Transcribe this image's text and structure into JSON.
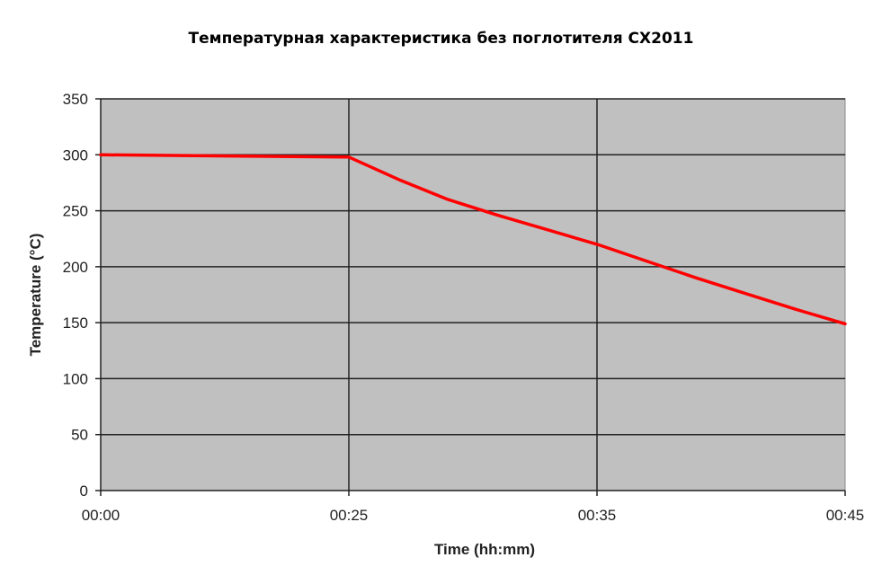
{
  "chart_data": {
    "type": "line",
    "title": "Температурная характеристика без поглотителя CX2011",
    "xlabel": "Time (hh:mm)",
    "ylabel": "Temperature (°C)",
    "ylim": [
      0,
      350
    ],
    "y_ticks": [
      0,
      50,
      100,
      150,
      200,
      250,
      300,
      350
    ],
    "x_ticks": [
      "00:00",
      "00:25",
      "00:35",
      "00:45"
    ],
    "grid": true,
    "plot_background": "#c0c0c0",
    "series": [
      {
        "color": "#ff0000",
        "points": [
          {
            "x": "00:00",
            "y": 300
          },
          {
            "x": "00:25",
            "y": 298
          },
          {
            "x": "00:27",
            "y": 278
          },
          {
            "x": "00:29",
            "y": 260
          },
          {
            "x": "00:31",
            "y": 246
          },
          {
            "x": "00:33",
            "y": 233
          },
          {
            "x": "00:35",
            "y": 220
          },
          {
            "x": "00:37",
            "y": 205
          },
          {
            "x": "00:39",
            "y": 190
          },
          {
            "x": "00:41",
            "y": 176
          },
          {
            "x": "00:43",
            "y": 162
          },
          {
            "x": "00:45",
            "y": 149
          }
        ]
      }
    ]
  }
}
